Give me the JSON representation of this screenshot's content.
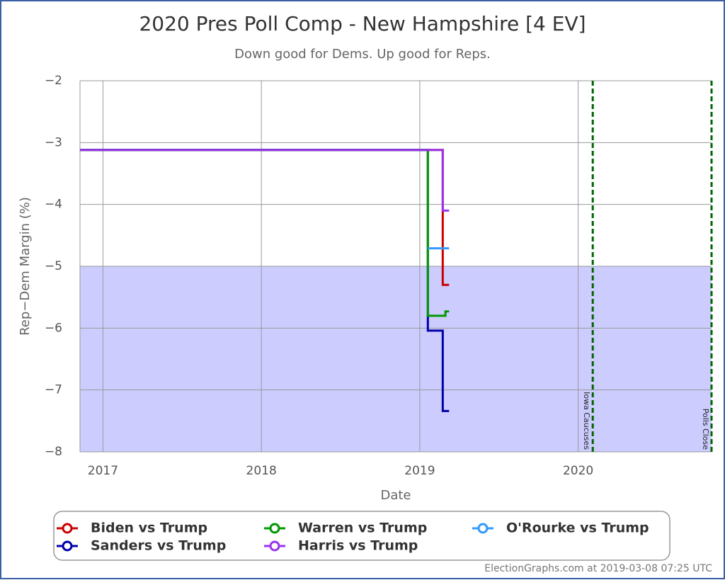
{
  "chart_data": {
    "type": "line",
    "title": "2020 Pres Poll Comp - New Hampshire [4 EV]",
    "subtitle": "Down good for Dems. Up good for Reps.",
    "x_label": "Date",
    "y_label": "Rep−Dem Margin (%)",
    "xlim": [
      2016.855,
      2020.842
    ],
    "xticks": [
      2017,
      2018,
      2019,
      2020
    ],
    "ylim": [
      -8,
      -2
    ],
    "yticks": [
      {
        "value": -2,
        "label": "−2"
      },
      {
        "value": -3,
        "label": "−3"
      },
      {
        "value": -4,
        "label": "−4"
      },
      {
        "value": -5,
        "label": "−5"
      },
      {
        "value": -6,
        "label": "−6"
      },
      {
        "value": -7,
        "label": "−7"
      },
      {
        "value": -8,
        "label": "−8"
      }
    ],
    "grid": true,
    "band": {
      "from": -8,
      "to": -5,
      "color": "#ccccff"
    },
    "series": [
      {
        "name": "Biden vs Trump",
        "color": "#cc0000",
        "x": [
          2016.855,
          2019.145,
          2019.145,
          2019.185
        ],
        "values": [
          -3.12,
          -3.12,
          -5.3,
          -5.3
        ]
      },
      {
        "name": "Sanders vs Trump",
        "color": "#0000aa",
        "x": [
          2016.855,
          2019.051,
          2019.051,
          2019.145,
          2019.145,
          2019.185
        ],
        "values": [
          -3.12,
          -3.12,
          -6.04,
          -6.04,
          -7.34,
          -7.34
        ]
      },
      {
        "name": "Warren vs Trump",
        "color": "#009900",
        "x": [
          2016.855,
          2019.051,
          2019.051,
          2019.162,
          2019.162,
          2019.185
        ],
        "values": [
          -3.12,
          -3.12,
          -5.8,
          -5.8,
          -5.73,
          -5.73
        ]
      },
      {
        "name": "Harris vs Trump",
        "color": "#9933ee",
        "x": [
          2016.855,
          2019.145,
          2019.145,
          2019.185
        ],
        "values": [
          -3.12,
          -3.12,
          -4.1,
          -4.1
        ]
      },
      {
        "name": "O'Rourke vs Trump",
        "color": "#3399ff",
        "x": [
          2019.051,
          2019.185
        ],
        "values": [
          -4.71,
          -4.71
        ]
      }
    ],
    "annotations": [
      {
        "x": 2020.092,
        "label": "Iowa Caucuses",
        "color": "#006600"
      },
      {
        "x": 2020.842,
        "label": "Polls Close",
        "color": "#006600"
      }
    ],
    "legend": "bottom",
    "footer": "ElectionGraphs.com at 2019-03-08 07:25 UTC"
  }
}
